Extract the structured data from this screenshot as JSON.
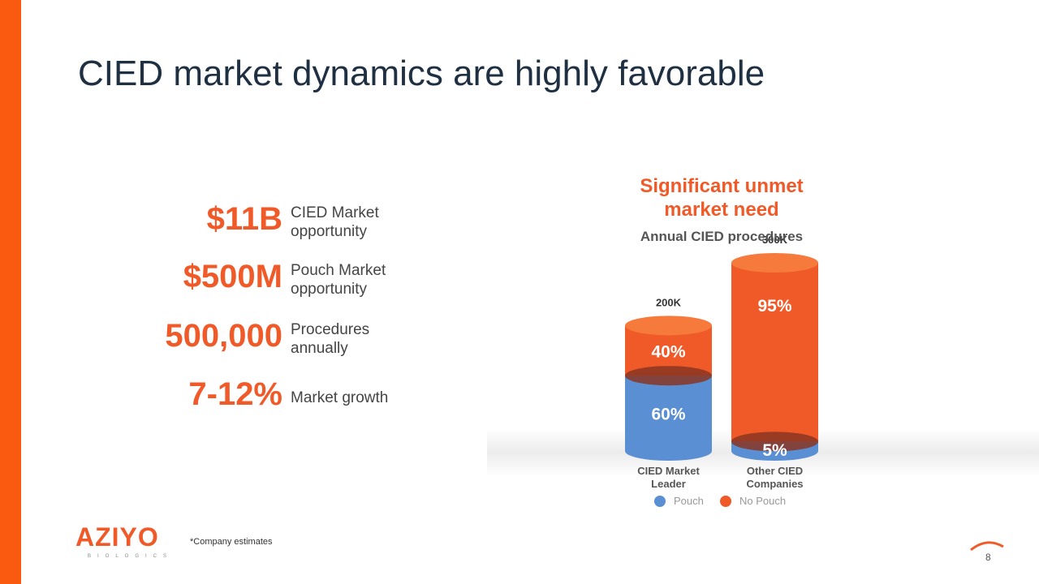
{
  "slide": {
    "title": "CIED market dynamics are highly favorable",
    "stats": [
      {
        "value": "$11B",
        "label": "CIED Market opportunity"
      },
      {
        "value": "$500M",
        "label": "Pouch Market opportunity"
      },
      {
        "value": "500,000",
        "label": "Procedures annually"
      },
      {
        "value": "7-12%",
        "label": "Market growth"
      }
    ],
    "footnote": "*Company estimates",
    "page_number": "8",
    "logo": {
      "name": "AZIYO",
      "tagline": "BIOLOGICS"
    }
  },
  "chart_data": {
    "type": "bar",
    "title": "Significant unmet market need",
    "subtitle": "Annual CIED procedures",
    "categories": [
      "CIED Market Leader",
      "Other CIED Companies"
    ],
    "totals": {
      "values": [
        200000,
        300000
      ],
      "value_labels": [
        "200K",
        "300K"
      ]
    },
    "series": [
      {
        "name": "Pouch",
        "color": "#5b8fd3",
        "values": [
          60,
          5
        ],
        "value_labels": [
          "60%",
          "5%"
        ]
      },
      {
        "name": "No Pouch",
        "color": "#f05a28",
        "values": [
          40,
          95
        ],
        "value_labels": [
          "40%",
          "95%"
        ]
      }
    ],
    "stacked": true
  }
}
